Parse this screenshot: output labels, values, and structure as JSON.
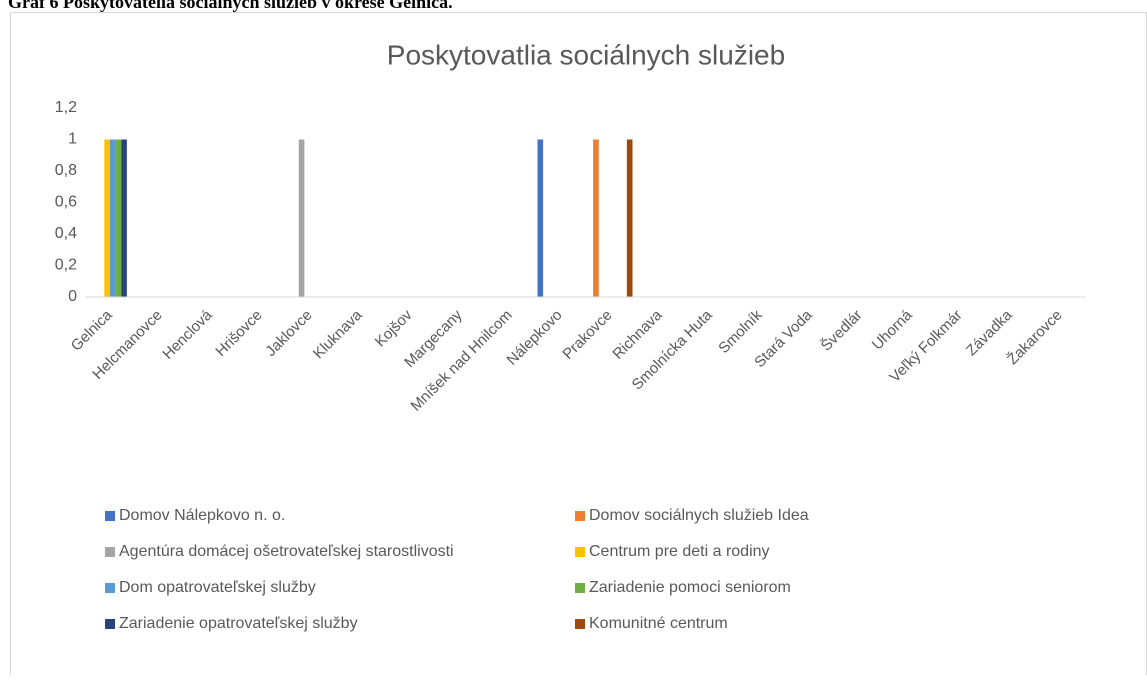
{
  "header": "Graf 6 Poskytovatelia sociálnych služieb v okrese Gelnica.",
  "chart_data": {
    "type": "bar",
    "title": "Poskytovatlia sociálnych služieb",
    "categories": [
      "Gelnica",
      "Helcmanovce",
      "Henclová",
      "Hrišovce",
      "Jaklovce",
      "Kluknava",
      "Kojšov",
      "Margecany",
      "Mníšek nad Hnilcom",
      "Nálepkovo",
      "Prakovce",
      "Richnava",
      "Smolnícka Huta",
      "Smolník",
      "Stará Voda",
      "Švedlár",
      "Uhorná",
      "Veľký Folkmár",
      "Závadka",
      "Žakarovce"
    ],
    "series": [
      {
        "name": "Domov Nálepkovo n. o.",
        "color": "#4472c4",
        "values": [
          0,
          0,
          0,
          0,
          0,
          0,
          0,
          0,
          0,
          1,
          0,
          0,
          0,
          0,
          0,
          0,
          0,
          0,
          0,
          0
        ]
      },
      {
        "name": "Domov sociálnych služieb Idea",
        "color": "#ed7d31",
        "values": [
          0,
          0,
          0,
          0,
          0,
          0,
          0,
          0,
          0,
          0,
          1,
          0,
          0,
          0,
          0,
          0,
          0,
          0,
          0,
          0
        ]
      },
      {
        "name": "Agentúra domácej ošetrovateľskej starostlivosti",
        "color": "#a5a5a5",
        "values": [
          0,
          0,
          0,
          0,
          1,
          0,
          0,
          0,
          0,
          0,
          0,
          0,
          0,
          0,
          0,
          0,
          0,
          0,
          0,
          0
        ]
      },
      {
        "name": "Centrum pre deti a rodiny",
        "color": "#ffc000",
        "values": [
          1,
          0,
          0,
          0,
          0,
          0,
          0,
          0,
          0,
          0,
          0,
          0,
          0,
          0,
          0,
          0,
          0,
          0,
          0,
          0
        ]
      },
      {
        "name": "Dom opatrovateľskej služby",
        "color": "#5b9bd5",
        "values": [
          1,
          0,
          0,
          0,
          0,
          0,
          0,
          0,
          0,
          0,
          0,
          0,
          0,
          0,
          0,
          0,
          0,
          0,
          0,
          0
        ]
      },
      {
        "name": "Zariadenie pomoci seniorom",
        "color": "#70ad47",
        "values": [
          1,
          0,
          0,
          0,
          0,
          0,
          0,
          0,
          0,
          0,
          0,
          0,
          0,
          0,
          0,
          0,
          0,
          0,
          0,
          0
        ]
      },
      {
        "name": "Zariadenie opatrovateľskej služby",
        "color": "#264478",
        "values": [
          1,
          0,
          0,
          0,
          0,
          0,
          0,
          0,
          0,
          0,
          0,
          0,
          0,
          0,
          0,
          0,
          0,
          0,
          0,
          0
        ]
      },
      {
        "name": "Komunitné centrum",
        "color": "#9e480e",
        "values": [
          0,
          0,
          0,
          0,
          0,
          0,
          0,
          0,
          0,
          0,
          1,
          0,
          0,
          0,
          0,
          0,
          0,
          0,
          0,
          0
        ]
      }
    ],
    "ylim": [
      0,
      1.2
    ],
    "yticks": [
      0,
      {
        "value": 0.2,
        "label": "0,2"
      },
      {
        "value": 0.4,
        "label": "0,4"
      },
      {
        "value": 0.6,
        "label": "0,6"
      },
      {
        "value": 0.8,
        "label": "0,8"
      },
      1,
      {
        "value": 1.2,
        "label": "1,2"
      }
    ],
    "grid": false,
    "legend": "bottom"
  }
}
